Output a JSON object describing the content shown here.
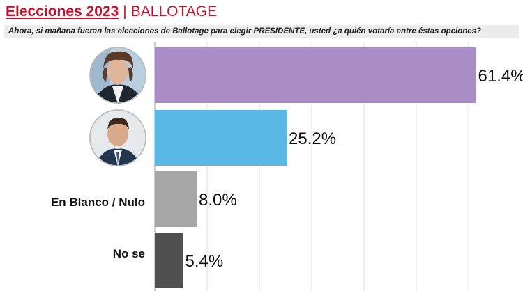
{
  "header": {
    "title_bold": "Elecciones 2023",
    "title_sep": "|",
    "title_rest": "BALLOTAGE",
    "question": "Ahora, si mañana fueran las elecciones de Ballotage para elegir PRESIDENTE, usted ¿a quién votaría entre éstas opciones?"
  },
  "colors": {
    "accent": "#c8102e",
    "bar_1": "#a98dc6",
    "bar_2": "#5ab9e4",
    "bar_3": "#a6a6a6",
    "bar_4": "#505050"
  },
  "chart_data": {
    "type": "bar",
    "orientation": "horizontal",
    "categories": [
      "",
      "",
      "En Blanco / Nulo",
      "No se"
    ],
    "category_images": [
      "candidate-1-photo",
      "candidate-2-photo",
      "",
      ""
    ],
    "values": [
      61.4,
      25.2,
      8.0,
      5.4
    ],
    "value_labels": [
      "61.4%",
      "25.2%",
      "8.0%",
      "5.4%"
    ],
    "colors": [
      "#a98dc6",
      "#5ab9e4",
      "#a6a6a6",
      "#505050"
    ],
    "xlim": [
      0,
      70
    ],
    "grid": true,
    "legend": "none"
  }
}
